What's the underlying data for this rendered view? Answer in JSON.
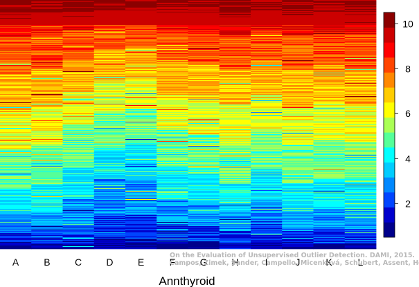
{
  "chart_data": {
    "type": "heatmap",
    "xlabel": "Annthyroid",
    "columns": [
      "A",
      "B",
      "C",
      "D",
      "E",
      "F",
      "G",
      "H",
      "I",
      "J",
      "K",
      "L"
    ],
    "rows": 360,
    "color_scale": {
      "min": 0.5,
      "max": 10.5,
      "colors": [
        "#00008B",
        "#0000CD",
        "#0044FF",
        "#0088FF",
        "#00CCFF",
        "#00FFFF",
        "#55FF99",
        "#AAFF55",
        "#FFFF00",
        "#FFCC00",
        "#FF8800",
        "#FF4400",
        "#FF0000",
        "#CC0000",
        "#8B0000"
      ],
      "tick_labels": [
        "2",
        "4",
        "6",
        "8",
        "10"
      ],
      "tick_values": [
        2,
        4,
        6,
        8,
        10
      ]
    },
    "profiles": [
      [
        0.02,
        0.07,
        0.14,
        0.24,
        0.4,
        0.55,
        0.7,
        0.85,
        0.94
      ],
      [
        0.02,
        0.08,
        0.15,
        0.26,
        0.42,
        0.57,
        0.72,
        0.86,
        0.95
      ],
      [
        0.02,
        0.1,
        0.2,
        0.33,
        0.5,
        0.63,
        0.76,
        0.88,
        0.95
      ],
      [
        0.04,
        0.14,
        0.28,
        0.42,
        0.55,
        0.68,
        0.8,
        0.9,
        0.96
      ],
      [
        0.04,
        0.14,
        0.28,
        0.42,
        0.56,
        0.69,
        0.81,
        0.91,
        0.97
      ],
      [
        0.03,
        0.1,
        0.2,
        0.33,
        0.48,
        0.62,
        0.75,
        0.88,
        0.95
      ],
      [
        0.03,
        0.09,
        0.18,
        0.3,
        0.46,
        0.6,
        0.74,
        0.87,
        0.95
      ],
      [
        0.02,
        0.07,
        0.15,
        0.26,
        0.42,
        0.58,
        0.72,
        0.85,
        0.93
      ],
      [
        0.02,
        0.1,
        0.2,
        0.32,
        0.48,
        0.62,
        0.76,
        0.88,
        0.96
      ],
      [
        0.02,
        0.07,
        0.15,
        0.26,
        0.42,
        0.57,
        0.72,
        0.86,
        0.94
      ],
      [
        0.02,
        0.08,
        0.16,
        0.28,
        0.44,
        0.59,
        0.74,
        0.87,
        0.95
      ],
      [
        0.02,
        0.08,
        0.16,
        0.27,
        0.43,
        0.58,
        0.72,
        0.86,
        0.94
      ]
    ]
  },
  "watermark": {
    "line1": "On the Evaluation of Unsupervised Outlier Detection. DAMI, 2015.",
    "line2": "Campos, Zimek, Sander, Campello, Micenková, Schubert, Assent, Houle"
  }
}
